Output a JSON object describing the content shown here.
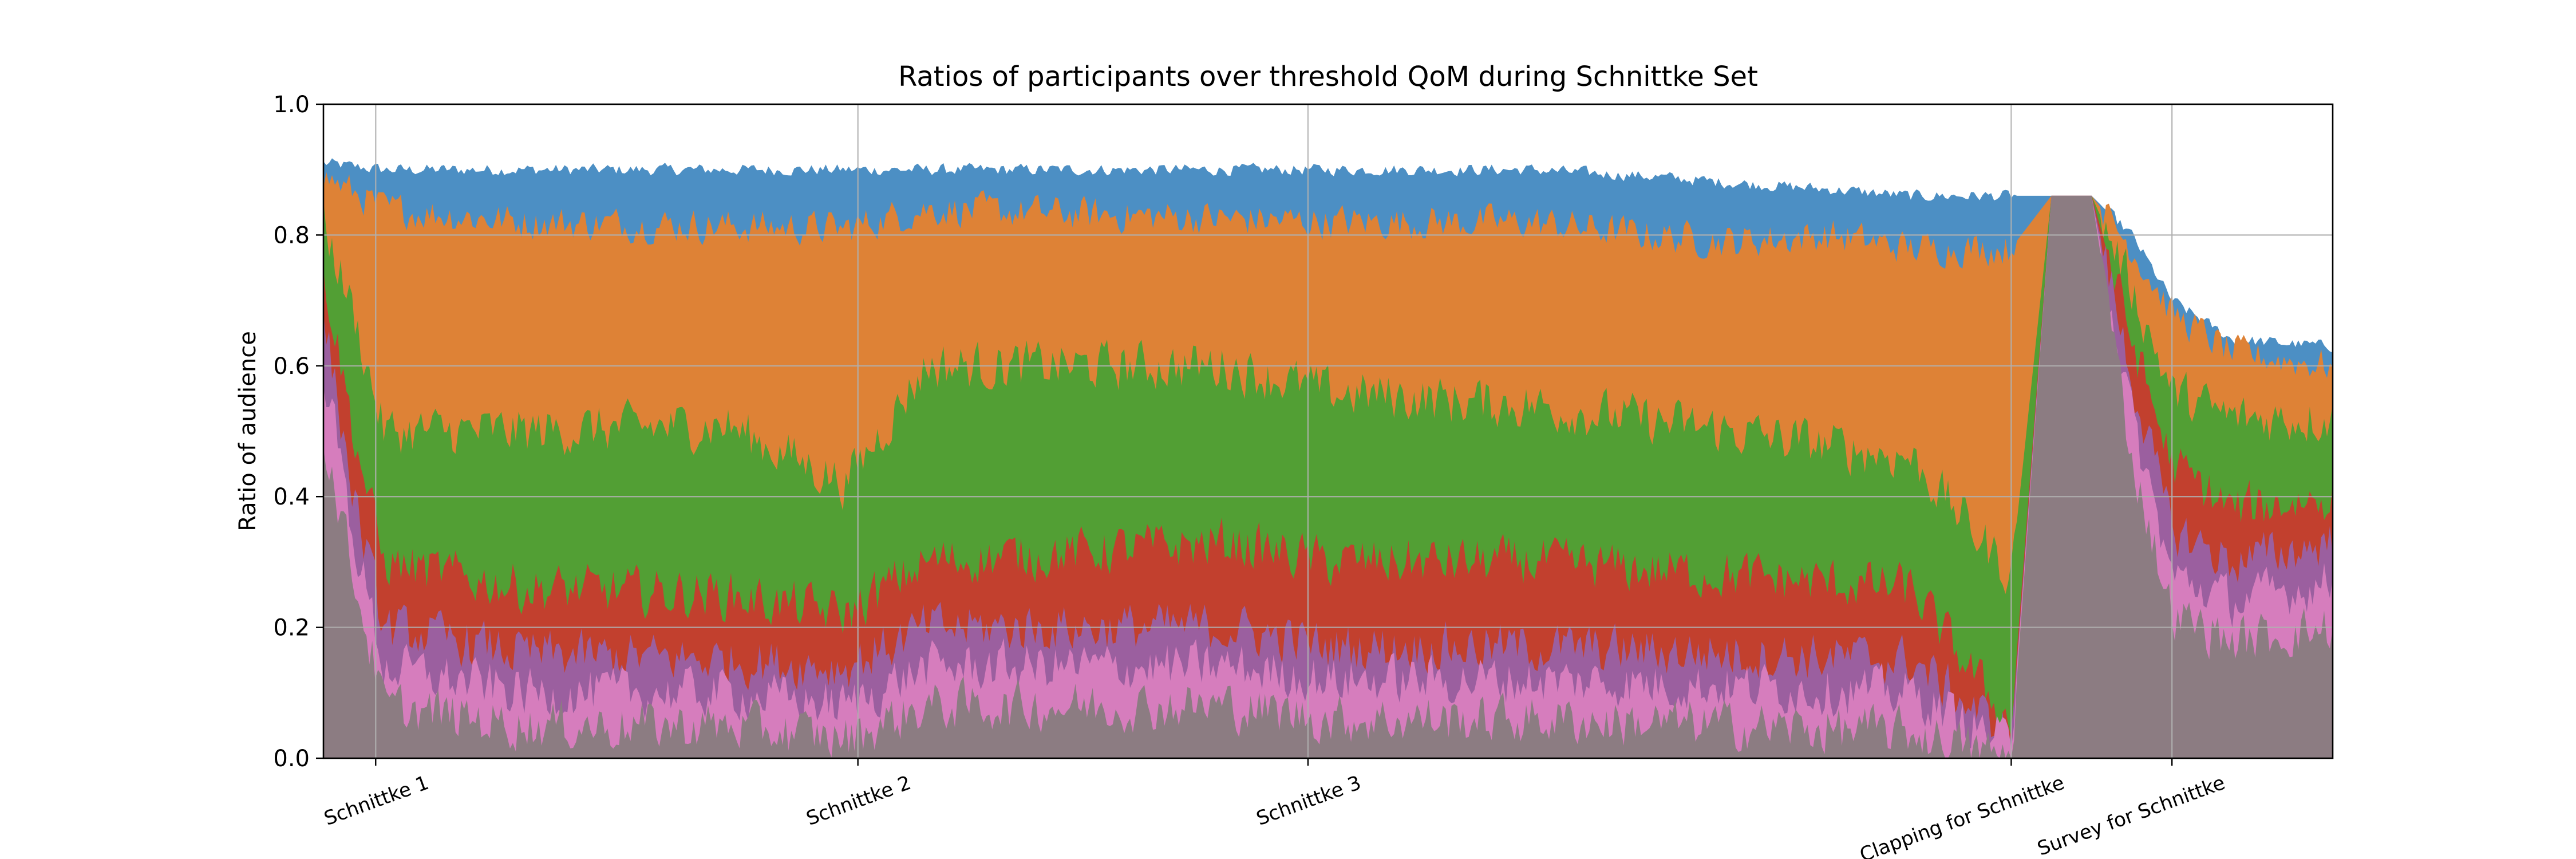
{
  "chart_data": {
    "type": "area",
    "title": "Ratios of participants over threshold QoM during Schnittke Set",
    "xlabel": "",
    "ylabel": "Ratio of audience",
    "ylim": [
      0,
      1
    ],
    "yticks": [
      0,
      0.2,
      0.4,
      0.6,
      0.8,
      1.0
    ],
    "ytick_labels": [
      "0.0",
      "0.2",
      "0.4",
      "0.6",
      "0.8",
      "1.0"
    ],
    "x_event_labels": [
      "Schnittke 1",
      "Schnittke 2",
      "Schnittke 3",
      "Clapping for Schnittke",
      "Survey for Schnittke"
    ],
    "x_event_fraction": [
      0.026,
      0.266,
      0.49,
      0.84,
      0.92
    ],
    "grid": true,
    "legend": "none",
    "colors": [
      "#4c8fc4",
      "#de8236",
      "#529f34",
      "#c2402e",
      "#9b5f9f",
      "#d67dbd",
      "#8c7c82"
    ],
    "series": [
      {
        "color": "#4c8fc4",
        "x": [
          0,
          0.03,
          0.1,
          0.26,
          0.3,
          0.5,
          0.6,
          0.66,
          0.7,
          0.75,
          0.79,
          0.84,
          0.86,
          0.88,
          0.9,
          0.92,
          0.95,
          1.0
        ],
        "values": [
          0.91,
          0.9,
          0.9,
          0.9,
          0.9,
          0.9,
          0.9,
          0.89,
          0.88,
          0.87,
          0.86,
          0.86,
          0.86,
          0.86,
          0.8,
          0.7,
          0.64,
          0.63
        ]
      },
      {
        "color": "#de8236",
        "x": [
          0,
          0.03,
          0.1,
          0.26,
          0.3,
          0.5,
          0.6,
          0.66,
          0.7,
          0.75,
          0.79,
          0.84,
          0.86,
          0.88,
          0.9,
          0.92,
          0.95,
          1.0
        ],
        "values": [
          0.89,
          0.84,
          0.82,
          0.81,
          0.84,
          0.82,
          0.82,
          0.8,
          0.79,
          0.8,
          0.78,
          0.78,
          0.86,
          0.86,
          0.78,
          0.68,
          0.62,
          0.6
        ]
      },
      {
        "color": "#529f34",
        "x": [
          0,
          0.015,
          0.03,
          0.1,
          0.2,
          0.26,
          0.3,
          0.45,
          0.5,
          0.6,
          0.7,
          0.79,
          0.84,
          0.86,
          0.88,
          0.9,
          0.92,
          0.95,
          1.0
        ],
        "values": [
          0.82,
          0.68,
          0.5,
          0.5,
          0.51,
          0.42,
          0.6,
          0.6,
          0.56,
          0.54,
          0.5,
          0.46,
          0.28,
          0.86,
          0.86,
          0.72,
          0.56,
          0.52,
          0.52
        ]
      },
      {
        "color": "#c2402e",
        "x": [
          0,
          0.015,
          0.03,
          0.1,
          0.2,
          0.26,
          0.3,
          0.45,
          0.5,
          0.6,
          0.7,
          0.79,
          0.84,
          0.86,
          0.88,
          0.9,
          0.92,
          0.95,
          1.0
        ],
        "values": [
          0.75,
          0.5,
          0.3,
          0.26,
          0.25,
          0.22,
          0.3,
          0.33,
          0.3,
          0.3,
          0.28,
          0.26,
          0.05,
          0.86,
          0.86,
          0.64,
          0.45,
          0.38,
          0.4
        ]
      },
      {
        "color": "#9b5f9f",
        "x": [
          0,
          0.015,
          0.03,
          0.1,
          0.2,
          0.26,
          0.3,
          0.45,
          0.5,
          0.6,
          0.7,
          0.79,
          0.84,
          0.86,
          0.88,
          0.9,
          0.92,
          0.95,
          1.0
        ],
        "values": [
          0.68,
          0.4,
          0.2,
          0.16,
          0.15,
          0.14,
          0.2,
          0.2,
          0.17,
          0.17,
          0.16,
          0.15,
          0.03,
          0.86,
          0.86,
          0.58,
          0.35,
          0.3,
          0.33
        ]
      },
      {
        "color": "#d67dbd",
        "x": [
          0,
          0.015,
          0.03,
          0.1,
          0.2,
          0.26,
          0.3,
          0.45,
          0.5,
          0.6,
          0.7,
          0.79,
          0.84,
          0.86,
          0.88,
          0.9,
          0.92,
          0.95,
          1.0
        ],
        "values": [
          0.6,
          0.34,
          0.14,
          0.1,
          0.1,
          0.08,
          0.14,
          0.14,
          0.12,
          0.12,
          0.11,
          0.1,
          0.02,
          0.86,
          0.86,
          0.52,
          0.28,
          0.24,
          0.27
        ]
      },
      {
        "color": "#8c7c82",
        "x": [
          0,
          0.015,
          0.03,
          0.1,
          0.2,
          0.26,
          0.3,
          0.45,
          0.5,
          0.6,
          0.7,
          0.79,
          0.84,
          0.86,
          0.88,
          0.9,
          0.92,
          0.95,
          1.0
        ],
        "values": [
          0.5,
          0.28,
          0.08,
          0.05,
          0.05,
          0.03,
          0.08,
          0.08,
          0.06,
          0.06,
          0.05,
          0.04,
          0.0,
          0.86,
          0.86,
          0.46,
          0.22,
          0.18,
          0.2
        ]
      }
    ]
  }
}
